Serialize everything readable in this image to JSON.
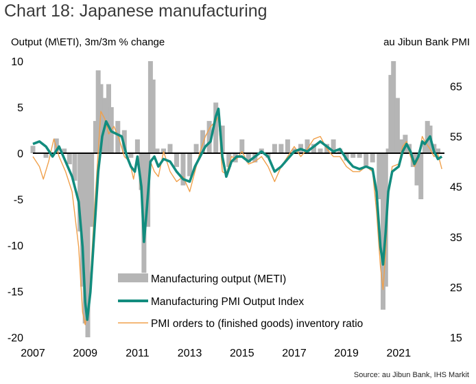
{
  "title": "Chart 18: Japanese manufacturing",
  "source": "Source: au Jibun Bank, IHS Markit",
  "chart_data": {
    "type": "combo bar+line",
    "left_axis_label": "Output (M\\ETI), 3m/3m % change",
    "right_axis_label": "au Jibun Bank PMI",
    "left_ylim": [
      -20,
      10
    ],
    "left_ticks": [
      "10",
      "5",
      "0",
      "-5",
      "-10",
      "-15",
      "-20"
    ],
    "right_ylim": [
      15,
      70
    ],
    "right_ticks": [
      "65",
      "55",
      "45",
      "35",
      "25",
      "15"
    ],
    "x_range": [
      2007,
      2022.75
    ],
    "x_ticks": [
      "2007",
      "2009",
      "2011",
      "2013",
      "2015",
      "2017",
      "2019",
      "2021"
    ],
    "colors": {
      "bars": "#b5b5b5",
      "pmi": "#128c7e",
      "orders": "#f0a04b",
      "zero": "#000000"
    },
    "legend": [
      {
        "label": "Manufacturing output (METI)",
        "kind": "bar"
      },
      {
        "label": "Manufacturing PMI Output Index",
        "kind": "thick-line"
      },
      {
        "label": "PMI orders to (finished goods) inventory ratio",
        "kind": "thin-line"
      }
    ],
    "series": [
      {
        "name": "Manufacturing output (METI)",
        "axis": "left",
        "type": "bar",
        "points": [
          [
            2007.0,
            0.8
          ],
          [
            2007.5,
            -0.5
          ],
          [
            2007.9,
            1.6
          ],
          [
            2008.2,
            0.5
          ],
          [
            2008.4,
            -1.2
          ],
          [
            2008.6,
            -3.0
          ],
          [
            2008.8,
            -8.5
          ],
          [
            2008.9,
            -14.5
          ],
          [
            2009.0,
            -18.5
          ],
          [
            2009.1,
            -20
          ],
          [
            2009.25,
            -8.0
          ],
          [
            2009.4,
            3.5
          ],
          [
            2009.5,
            9.0
          ],
          [
            2009.6,
            7.5
          ],
          [
            2009.75,
            6.0
          ],
          [
            2009.9,
            7.5
          ],
          [
            2010.0,
            5.0
          ],
          [
            2010.25,
            3.5
          ],
          [
            2010.5,
            2.5
          ],
          [
            2010.75,
            -0.5
          ],
          [
            2011.0,
            1.5
          ],
          [
            2011.15,
            -4.0
          ],
          [
            2011.25,
            -13.0
          ],
          [
            2011.4,
            -8.0
          ],
          [
            2011.5,
            10.0
          ],
          [
            2011.6,
            8.0
          ],
          [
            2011.75,
            0.5
          ],
          [
            2012.0,
            0.5
          ],
          [
            2012.25,
            1.0
          ],
          [
            2012.5,
            -1.5
          ],
          [
            2012.75,
            -3.5
          ],
          [
            2013.0,
            -2.5
          ],
          [
            2013.25,
            1.0
          ],
          [
            2013.5,
            2.5
          ],
          [
            2013.75,
            3.5
          ],
          [
            2014.0,
            5.5
          ],
          [
            2014.25,
            3.0
          ],
          [
            2014.5,
            -1.5
          ],
          [
            2014.75,
            -1.0
          ],
          [
            2015.0,
            1.5
          ],
          [
            2015.25,
            -1.0
          ],
          [
            2015.5,
            -1.0
          ],
          [
            2015.75,
            0.5
          ],
          [
            2016.0,
            -0.5
          ],
          [
            2016.25,
            1.0
          ],
          [
            2016.5,
            1.0
          ],
          [
            2016.75,
            1.5
          ],
          [
            2017.0,
            0.5
          ],
          [
            2017.25,
            1.0
          ],
          [
            2017.5,
            1.5
          ],
          [
            2017.75,
            1.0
          ],
          [
            2018.0,
            0.5
          ],
          [
            2018.25,
            1.0
          ],
          [
            2018.5,
            1.5
          ],
          [
            2018.75,
            0.5
          ],
          [
            2019.0,
            -0.8
          ],
          [
            2019.25,
            -0.5
          ],
          [
            2019.5,
            -0.5
          ],
          [
            2019.75,
            -1.5
          ],
          [
            2020.0,
            -1.0
          ],
          [
            2020.25,
            -5.0
          ],
          [
            2020.4,
            -17.0
          ],
          [
            2020.5,
            -14.5
          ],
          [
            2020.6,
            0.5
          ],
          [
            2020.7,
            8.5
          ],
          [
            2020.8,
            10.0
          ],
          [
            2020.95,
            6.0
          ],
          [
            2021.1,
            1.5
          ],
          [
            2021.25,
            2.0
          ],
          [
            2021.4,
            1.0
          ],
          [
            2021.55,
            -1.5
          ],
          [
            2021.7,
            -3.5
          ],
          [
            2021.85,
            -5.0
          ],
          [
            2022.0,
            1.0
          ],
          [
            2022.1,
            3.5
          ],
          [
            2022.2,
            3.0
          ],
          [
            2022.35,
            1.0
          ],
          [
            2022.5,
            0.5
          ]
        ]
      },
      {
        "name": "Manufacturing PMI Output Index",
        "axis": "right",
        "type": "line",
        "points": [
          [
            2007.0,
            53.5
          ],
          [
            2007.25,
            54.0
          ],
          [
            2007.5,
            53.0
          ],
          [
            2007.75,
            51.0
          ],
          [
            2008.0,
            53.0
          ],
          [
            2008.25,
            50.0
          ],
          [
            2008.5,
            47.0
          ],
          [
            2008.75,
            42.0
          ],
          [
            2008.9,
            33.0
          ],
          [
            2009.0,
            22.0
          ],
          [
            2009.08,
            18.5
          ],
          [
            2009.2,
            24.0
          ],
          [
            2009.35,
            36.0
          ],
          [
            2009.5,
            48.0
          ],
          [
            2009.65,
            55.0
          ],
          [
            2009.8,
            58.0
          ],
          [
            2010.0,
            56.0
          ],
          [
            2010.2,
            55.5
          ],
          [
            2010.4,
            55.0
          ],
          [
            2010.6,
            51.0
          ],
          [
            2010.75,
            49.0
          ],
          [
            2010.9,
            48.0
          ],
          [
            2011.0,
            51.0
          ],
          [
            2011.15,
            45.0
          ],
          [
            2011.25,
            34.0
          ],
          [
            2011.35,
            40.0
          ],
          [
            2011.5,
            50.0
          ],
          [
            2011.65,
            51.0
          ],
          [
            2011.8,
            49.0
          ],
          [
            2012.0,
            50.5
          ],
          [
            2012.25,
            50.0
          ],
          [
            2012.5,
            48.0
          ],
          [
            2012.75,
            46.5
          ],
          [
            2013.0,
            46.0
          ],
          [
            2013.2,
            49.0
          ],
          [
            2013.4,
            51.0
          ],
          [
            2013.6,
            53.0
          ],
          [
            2013.8,
            54.0
          ],
          [
            2014.0,
            59.0
          ],
          [
            2014.1,
            60.5
          ],
          [
            2014.25,
            51.0
          ],
          [
            2014.4,
            47.0
          ],
          [
            2014.6,
            50.0
          ],
          [
            2014.8,
            51.0
          ],
          [
            2015.0,
            51.0
          ],
          [
            2015.25,
            50.0
          ],
          [
            2015.5,
            51.0
          ],
          [
            2015.75,
            52.0
          ],
          [
            2016.0,
            51.0
          ],
          [
            2016.25,
            48.0
          ],
          [
            2016.5,
            49.0
          ],
          [
            2016.75,
            50.5
          ],
          [
            2017.0,
            52.0
          ],
          [
            2017.25,
            52.5
          ],
          [
            2017.5,
            52.0
          ],
          [
            2017.75,
            53.0
          ],
          [
            2018.0,
            54.0
          ],
          [
            2018.25,
            53.0
          ],
          [
            2018.5,
            52.0
          ],
          [
            2018.75,
            52.5
          ],
          [
            2019.0,
            50.5
          ],
          [
            2019.25,
            49.0
          ],
          [
            2019.5,
            48.5
          ],
          [
            2019.75,
            49.0
          ],
          [
            2020.0,
            48.5
          ],
          [
            2020.15,
            44.0
          ],
          [
            2020.3,
            33.0
          ],
          [
            2020.4,
            29.5
          ],
          [
            2020.5,
            36.0
          ],
          [
            2020.6,
            44.0
          ],
          [
            2020.75,
            48.0
          ],
          [
            2021.0,
            49.0
          ],
          [
            2021.15,
            52.0
          ],
          [
            2021.3,
            53.5
          ],
          [
            2021.45,
            52.0
          ],
          [
            2021.6,
            49.5
          ],
          [
            2021.75,
            51.0
          ],
          [
            2021.9,
            54.0
          ],
          [
            2022.0,
            53.5
          ],
          [
            2022.2,
            55.0
          ],
          [
            2022.35,
            52.0
          ],
          [
            2022.5,
            50.5
          ],
          [
            2022.65,
            51.0
          ]
        ]
      },
      {
        "name": "PMI orders to (finished goods) inventory ratio",
        "axis": "right",
        "type": "line",
        "points": [
          [
            2007.0,
            51.0
          ],
          [
            2007.25,
            49.0
          ],
          [
            2007.4,
            46.5
          ],
          [
            2007.6,
            50.0
          ],
          [
            2007.8,
            54.5
          ],
          [
            2008.0,
            51.0
          ],
          [
            2008.25,
            48.0
          ],
          [
            2008.5,
            44.0
          ],
          [
            2008.75,
            33.0
          ],
          [
            2008.9,
            20.0
          ],
          [
            2009.0,
            17.5
          ],
          [
            2009.15,
            22.0
          ],
          [
            2009.35,
            40.0
          ],
          [
            2009.5,
            52.0
          ],
          [
            2009.6,
            60.0
          ],
          [
            2009.75,
            58.5
          ],
          [
            2009.9,
            55.5
          ],
          [
            2010.1,
            57.0
          ],
          [
            2010.3,
            54.5
          ],
          [
            2010.5,
            51.0
          ],
          [
            2010.7,
            50.0
          ],
          [
            2010.85,
            46.5
          ],
          [
            2011.0,
            51.0
          ],
          [
            2011.15,
            43.0
          ],
          [
            2011.25,
            35.0
          ],
          [
            2011.35,
            42.0
          ],
          [
            2011.5,
            50.0
          ],
          [
            2011.65,
            48.0
          ],
          [
            2011.8,
            47.0
          ],
          [
            2012.0,
            52.0
          ],
          [
            2012.25,
            48.0
          ],
          [
            2012.5,
            46.0
          ],
          [
            2012.75,
            47.0
          ],
          [
            2013.0,
            44.0
          ],
          [
            2013.2,
            48.0
          ],
          [
            2013.4,
            52.0
          ],
          [
            2013.6,
            55.0
          ],
          [
            2013.8,
            57.0
          ],
          [
            2014.0,
            58.0
          ],
          [
            2014.1,
            59.0
          ],
          [
            2014.25,
            48.0
          ],
          [
            2014.4,
            47.5
          ],
          [
            2014.6,
            51.0
          ],
          [
            2014.8,
            50.5
          ],
          [
            2015.0,
            52.0
          ],
          [
            2015.25,
            49.5
          ],
          [
            2015.5,
            50.0
          ],
          [
            2015.75,
            51.0
          ],
          [
            2016.0,
            49.0
          ],
          [
            2016.25,
            46.0
          ],
          [
            2016.5,
            49.0
          ],
          [
            2016.75,
            51.0
          ],
          [
            2017.0,
            53.0
          ],
          [
            2017.25,
            51.0
          ],
          [
            2017.5,
            52.5
          ],
          [
            2017.75,
            54.5
          ],
          [
            2018.0,
            55.0
          ],
          [
            2018.25,
            52.5
          ],
          [
            2018.5,
            51.0
          ],
          [
            2018.75,
            51.0
          ],
          [
            2019.0,
            49.0
          ],
          [
            2019.25,
            48.0
          ],
          [
            2019.5,
            48.0
          ],
          [
            2019.75,
            49.0
          ],
          [
            2020.0,
            48.0
          ],
          [
            2020.15,
            40.0
          ],
          [
            2020.3,
            29.0
          ],
          [
            2020.4,
            24.5
          ],
          [
            2020.5,
            32.0
          ],
          [
            2020.6,
            43.0
          ],
          [
            2020.75,
            49.0
          ],
          [
            2021.0,
            49.5
          ],
          [
            2021.15,
            53.0
          ],
          [
            2021.3,
            54.0
          ],
          [
            2021.45,
            51.0
          ],
          [
            2021.6,
            49.0
          ],
          [
            2021.75,
            50.5
          ],
          [
            2021.9,
            55.0
          ],
          [
            2022.0,
            54.0
          ],
          [
            2022.2,
            52.5
          ],
          [
            2022.35,
            51.0
          ],
          [
            2022.5,
            51.5
          ],
          [
            2022.65,
            48.5
          ]
        ]
      }
    ]
  }
}
